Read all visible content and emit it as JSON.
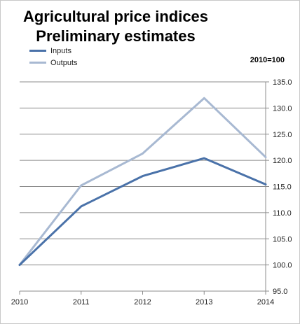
{
  "chart_data": {
    "type": "line",
    "title_lines": [
      "Agricultural price indices",
      "Preliminary estimates"
    ],
    "base_note": "2010=100",
    "x": [
      "2010",
      "2011",
      "2012",
      "2013",
      "2014"
    ],
    "series": [
      {
        "name": "Inputs",
        "color": "#4a72a9",
        "values": [
          100.0,
          111.2,
          117.0,
          120.4,
          115.4
        ]
      },
      {
        "name": "Outputs",
        "color": "#a8b9d2",
        "values": [
          100.0,
          115.2,
          121.3,
          131.9,
          120.6
        ]
      }
    ],
    "ylim": [
      95.0,
      135.0
    ],
    "yticks": [
      "95.0",
      "100.0",
      "105.0",
      "110.0",
      "115.0",
      "120.0",
      "125.0",
      "130.0",
      "135.0"
    ],
    "y_axis_side": "right",
    "grid": true,
    "legend_position": "top-left"
  }
}
